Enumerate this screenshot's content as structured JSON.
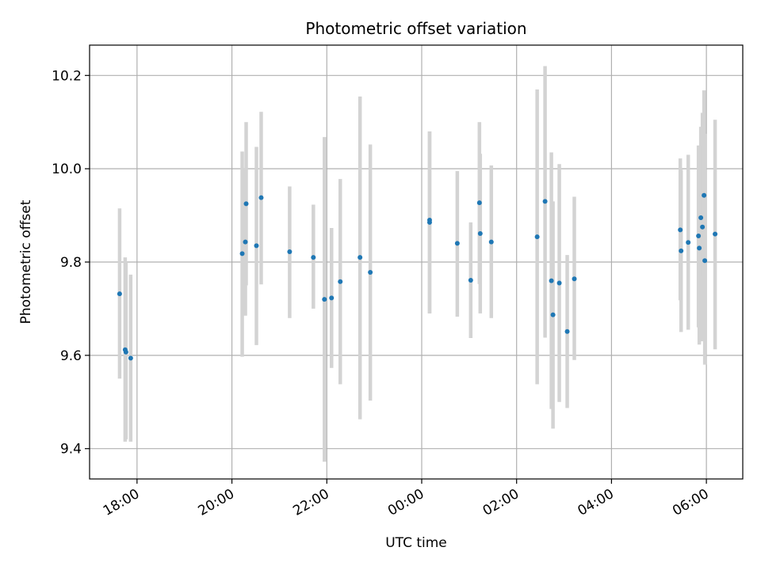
{
  "chart_data": {
    "type": "scatter",
    "title": "Photometric offset variation",
    "xlabel": "UTC time",
    "ylabel": "Photometric offset",
    "grid": true,
    "x_ticks": [
      "18:00",
      "20:00",
      "22:00",
      "00:00",
      "02:00",
      "04:00",
      "06:00"
    ],
    "y_ticks": [
      "9.4",
      "9.6",
      "9.8",
      "10.0",
      "10.2"
    ],
    "x_range": [
      "17:00",
      "06:46"
    ],
    "ylim": [
      9.335,
      10.265
    ],
    "colors": {
      "points": "#1f77b4",
      "error_bars": "#d3d3d3",
      "grid": "#b0b0b0"
    },
    "points": [
      {
        "t": "17:38",
        "y": 9.732,
        "lo": 9.55,
        "hi": 9.915
      },
      {
        "t": "17:45",
        "y": 9.612,
        "lo": 9.415,
        "hi": 9.81
      },
      {
        "t": "17:46",
        "y": 9.607,
        "lo": 9.42,
        "hi": 9.8
      },
      {
        "t": "17:52",
        "y": 9.594,
        "lo": 9.415,
        "hi": 9.773
      },
      {
        "t": "20:13",
        "y": 9.818,
        "lo": 9.597,
        "hi": 10.037
      },
      {
        "t": "20:17",
        "y": 9.843,
        "lo": 9.685,
        "hi": 10.0
      },
      {
        "t": "20:18",
        "y": 9.925,
        "lo": 9.75,
        "hi": 10.1
      },
      {
        "t": "20:31",
        "y": 9.835,
        "lo": 9.622,
        "hi": 10.047
      },
      {
        "t": "20:37",
        "y": 9.938,
        "lo": 9.752,
        "hi": 10.122
      },
      {
        "t": "21:13",
        "y": 9.822,
        "lo": 9.68,
        "hi": 9.962
      },
      {
        "t": "21:43",
        "y": 9.81,
        "lo": 9.7,
        "hi": 9.923
      },
      {
        "t": "21:57",
        "y": 9.72,
        "lo": 9.372,
        "hi": 10.068
      },
      {
        "t": "22:06",
        "y": 9.723,
        "lo": 9.573,
        "hi": 9.873
      },
      {
        "t": "22:17",
        "y": 9.758,
        "lo": 9.538,
        "hi": 9.978
      },
      {
        "t": "22:42",
        "y": 9.81,
        "lo": 9.463,
        "hi": 10.155
      },
      {
        "t": "22:55",
        "y": 9.778,
        "lo": 9.503,
        "hi": 10.052
      },
      {
        "t": "00:10",
        "y": 9.89,
        "lo": 9.69,
        "hi": 10.08
      },
      {
        "t": "00:10",
        "y": 9.885,
        "lo": 9.69,
        "hi": 10.08
      },
      {
        "t": "00:45",
        "y": 9.84,
        "lo": 9.683,
        "hi": 9.995
      },
      {
        "t": "01:02",
        "y": 9.761,
        "lo": 9.637,
        "hi": 9.885
      },
      {
        "t": "01:13",
        "y": 9.927,
        "lo": 9.753,
        "hi": 10.1
      },
      {
        "t": "01:14",
        "y": 9.861,
        "lo": 9.69,
        "hi": 10.032
      },
      {
        "t": "01:28",
        "y": 9.843,
        "lo": 9.68,
        "hi": 10.007
      },
      {
        "t": "02:26",
        "y": 9.854,
        "lo": 9.538,
        "hi": 10.17
      },
      {
        "t": "02:36",
        "y": 9.93,
        "lo": 9.638,
        "hi": 10.22
      },
      {
        "t": "02:44",
        "y": 9.76,
        "lo": 9.485,
        "hi": 10.035
      },
      {
        "t": "02:46",
        "y": 9.687,
        "lo": 9.443,
        "hi": 9.93
      },
      {
        "t": "02:54",
        "y": 9.755,
        "lo": 9.5,
        "hi": 10.01
      },
      {
        "t": "03:04",
        "y": 9.651,
        "lo": 9.487,
        "hi": 9.815
      },
      {
        "t": "03:13",
        "y": 9.764,
        "lo": 9.59,
        "hi": 9.94
      },
      {
        "t": "05:27",
        "y": 9.869,
        "lo": 9.718,
        "hi": 10.022
      },
      {
        "t": "05:28",
        "y": 9.824,
        "lo": 9.65,
        "hi": 9.998
      },
      {
        "t": "05:37",
        "y": 9.842,
        "lo": 9.655,
        "hi": 10.03
      },
      {
        "t": "05:50",
        "y": 9.856,
        "lo": 9.66,
        "hi": 10.05
      },
      {
        "t": "05:51",
        "y": 9.83,
        "lo": 9.623,
        "hi": 10.04
      },
      {
        "t": "05:53",
        "y": 9.895,
        "lo": 9.7,
        "hi": 10.09
      },
      {
        "t": "05:55",
        "y": 9.875,
        "lo": 9.63,
        "hi": 10.12
      },
      {
        "t": "05:57",
        "y": 9.943,
        "lo": 9.77,
        "hi": 10.168
      },
      {
        "t": "05:58",
        "y": 9.803,
        "lo": 9.58,
        "hi": 10.075
      },
      {
        "t": "06:11",
        "y": 9.86,
        "lo": 9.613,
        "hi": 10.105
      }
    ]
  }
}
